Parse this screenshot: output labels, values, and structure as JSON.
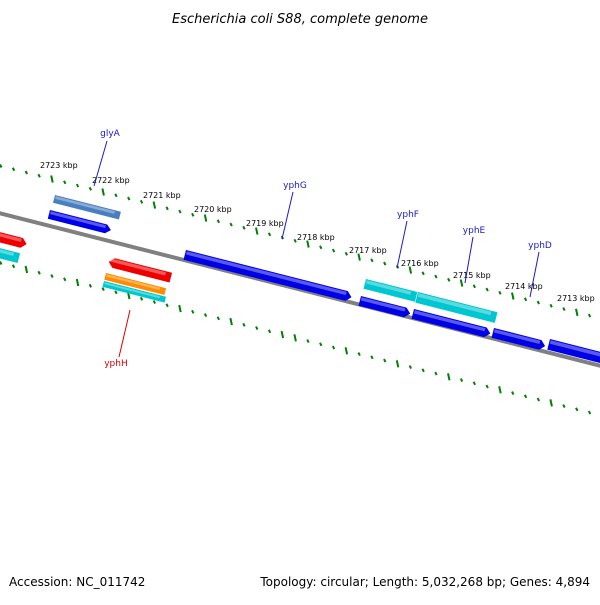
{
  "header": {
    "title": "Escherichia coli S88, complete genome"
  },
  "footer": {
    "accession": "Accession: NC_011742",
    "summary": "Topology: circular; Length: 5,032,268 bp; Genes: 4,894"
  },
  "colors": {
    "backbone": "#808080",
    "tick": "#008000",
    "label_blue": "#1a1acc",
    "label_red": "#dd0000",
    "blue": "#0000e6",
    "steel": "#4a7fbf",
    "cyan": "#00c6d0",
    "red": "#ee0000",
    "orange": "#ff8c00"
  },
  "ticks": [
    {
      "kbp": 2723,
      "label": "2723 kbp"
    },
    {
      "kbp": 2722,
      "label": "2722 kbp"
    },
    {
      "kbp": 2721,
      "label": "2721 kbp"
    },
    {
      "kbp": 2720,
      "label": "2720 kbp"
    },
    {
      "kbp": 2719,
      "label": "2719 kbp"
    },
    {
      "kbp": 2718,
      "label": "2718 kbp"
    },
    {
      "kbp": 2717,
      "label": "2717 kbp"
    },
    {
      "kbp": 2716,
      "label": "2716 kbp"
    },
    {
      "kbp": 2715,
      "label": "2715 kbp"
    },
    {
      "kbp": 2714,
      "label": "2714 kbp"
    },
    {
      "kbp": 2713,
      "label": "2713 kbp"
    }
  ],
  "gene_labels": [
    {
      "name": "glyA",
      "color": "label_blue"
    },
    {
      "name": "yphG",
      "color": "label_blue"
    },
    {
      "name": "yphF",
      "color": "label_blue"
    },
    {
      "name": "yphE",
      "color": "label_blue"
    },
    {
      "name": "yphD",
      "color": "label_blue"
    },
    {
      "name": "yphH",
      "color": "label_red"
    }
  ],
  "features": [
    {
      "id": "left-red-upper",
      "color": "red"
    },
    {
      "id": "left-cyan-upper",
      "color": "cyan"
    },
    {
      "id": "glyA-steel",
      "color": "steel"
    },
    {
      "id": "glyA-blue",
      "color": "blue"
    },
    {
      "id": "yphH-red",
      "color": "red"
    },
    {
      "id": "yphH-orange",
      "color": "orange"
    },
    {
      "id": "yphH-cyan",
      "color": "cyan"
    },
    {
      "id": "yphG-blue",
      "color": "blue"
    },
    {
      "id": "yphF-cyan",
      "color": "cyan"
    },
    {
      "id": "yphF-blue",
      "color": "blue"
    },
    {
      "id": "yphE-cyan",
      "color": "cyan"
    },
    {
      "id": "yphE-blue",
      "color": "blue"
    },
    {
      "id": "yphD-blue",
      "color": "blue"
    },
    {
      "id": "right-blue",
      "color": "blue"
    }
  ]
}
